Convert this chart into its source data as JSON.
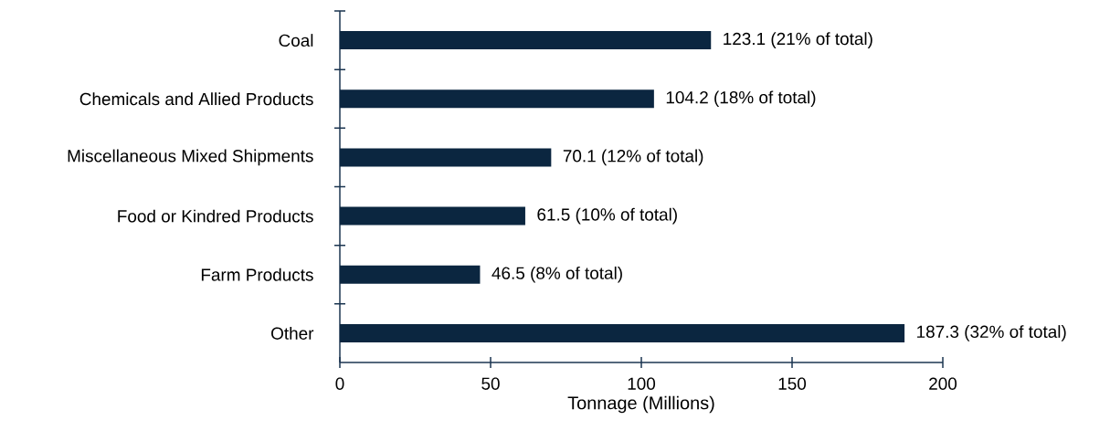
{
  "chart_data": {
    "type": "bar",
    "orientation": "horizontal",
    "xlabel": "Tonnage (Millions)",
    "categories": [
      "Coal",
      "Chemicals and Allied Products",
      "Miscellaneous Mixed Shipments",
      "Food or Kindred Products",
      "Farm Products",
      "Other"
    ],
    "values": [
      123.1,
      104.2,
      70.1,
      61.5,
      46.5,
      187.3
    ],
    "value_labels": [
      "123.1 (21% of total)",
      "104.2 (18% of total)",
      "70.1 (12% of total)",
      "61.5 (10% of total)",
      "46.5 (8% of total)",
      "187.3 (32% of total)"
    ],
    "color": "#0b2640",
    "xlim": [
      0,
      200
    ],
    "xticks": [
      0,
      50,
      100,
      150,
      200
    ]
  }
}
